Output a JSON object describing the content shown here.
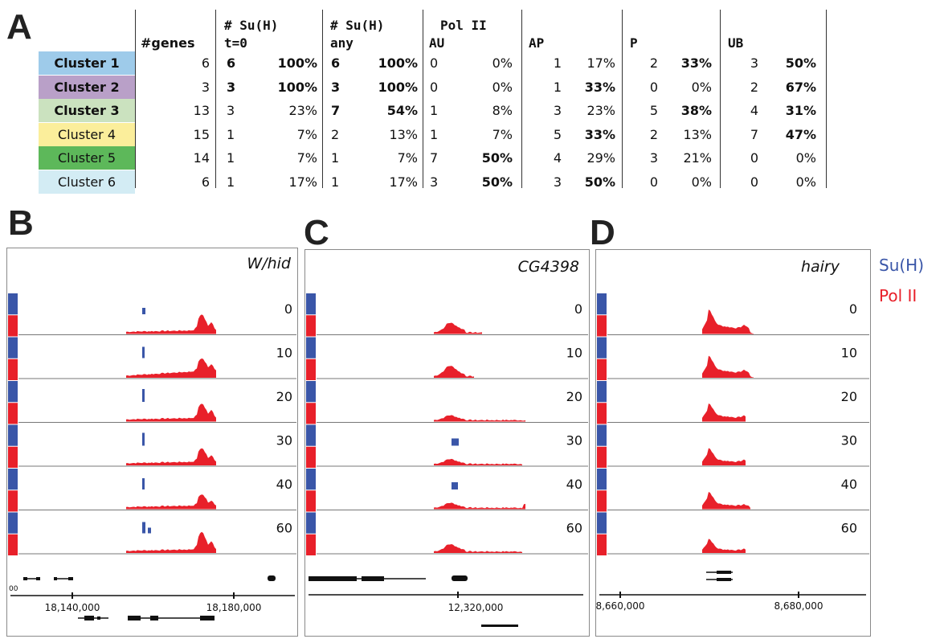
{
  "panels": {
    "A": "A",
    "B": "B",
    "C": "C",
    "D": "D"
  },
  "table": {
    "headers": {
      "genes": "#genes",
      "suh_t0_line1": "# Su(H)",
      "suh_t0_line2": "t=0",
      "suh_any_line1": "# Su(H)",
      "suh_any_line2": "any",
      "polii": "Pol II",
      "au": "AU",
      "ap": "AP",
      "p": "P",
      "ub": "UB"
    },
    "rows": [
      {
        "cluster": "Cluster 1",
        "color": "#9ecbea",
        "bold_name": true,
        "genes": "6",
        "t0_n": "6",
        "t0_p": "100%",
        "t0_b": true,
        "any_n": "6",
        "any_p": "100%",
        "any_b": true,
        "au_n": "0",
        "au_p": "0%",
        "au_b": false,
        "ap_n": "1",
        "ap_p": "17%",
        "ap_b": false,
        "p_n": "2",
        "p_p": "33%",
        "p_b": true,
        "ub_n": "3",
        "ub_p": "50%",
        "ub_b": true
      },
      {
        "cluster": "Cluster 2",
        "color": "#b9a0c8",
        "bold_name": true,
        "genes": "3",
        "t0_n": "3",
        "t0_p": "100%",
        "t0_b": true,
        "any_n": "3",
        "any_p": "100%",
        "any_b": true,
        "au_n": "0",
        "au_p": "0%",
        "au_b": false,
        "ap_n": "1",
        "ap_p": "33%",
        "ap_b": true,
        "p_n": "0",
        "p_p": "0%",
        "p_b": false,
        "ub_n": "2",
        "ub_p": "67%",
        "ub_b": true
      },
      {
        "cluster": "Cluster 3",
        "color": "#cbe2bf",
        "bold_name": true,
        "genes": "13",
        "t0_n": "3",
        "t0_p": "23%",
        "t0_b": false,
        "any_n": "7",
        "any_p": "54%",
        "any_b": true,
        "au_n": "1",
        "au_p": "8%",
        "au_b": false,
        "ap_n": "3",
        "ap_p": "23%",
        "ap_b": false,
        "p_n": "5",
        "p_p": "38%",
        "p_b": true,
        "ub_n": "4",
        "ub_p": "31%",
        "ub_b": true
      },
      {
        "cluster": "Cluster 4",
        "color": "#fbee9b",
        "bold_name": false,
        "genes": "15",
        "t0_n": "1",
        "t0_p": "7%",
        "t0_b": false,
        "any_n": "2",
        "any_p": "13%",
        "any_b": false,
        "au_n": "1",
        "au_p": "7%",
        "au_b": false,
        "ap_n": "5",
        "ap_p": "33%",
        "ap_b": true,
        "p_n": "2",
        "p_p": "13%",
        "p_b": false,
        "ub_n": "7",
        "ub_p": "47%",
        "ub_b": true
      },
      {
        "cluster": "Cluster 5",
        "color": "#5db85a",
        "bold_name": false,
        "genes": "14",
        "t0_n": "1",
        "t0_p": "7%",
        "t0_b": false,
        "any_n": "1",
        "any_p": "7%",
        "any_b": false,
        "au_n": "7",
        "au_p": "50%",
        "au_b": true,
        "ap_n": "4",
        "ap_p": "29%",
        "ap_b": false,
        "p_n": "3",
        "p_p": "21%",
        "p_b": false,
        "ub_n": "0",
        "ub_p": "0%",
        "ub_b": false
      },
      {
        "cluster": "Cluster 6",
        "color": "#d3ecf4",
        "bold_name": false,
        "genes": "6",
        "t0_n": "1",
        "t0_p": "17%",
        "t0_b": false,
        "any_n": "1",
        "any_p": "17%",
        "any_b": false,
        "au_n": "3",
        "au_p": "50%",
        "au_b": true,
        "ap_n": "3",
        "ap_p": "50%",
        "ap_b": true,
        "p_n": "0",
        "p_p": "0%",
        "p_b": false,
        "ub_n": "0",
        "ub_p": "0%",
        "ub_b": false
      }
    ]
  },
  "legend": {
    "suh": "Su(H)",
    "suh_color": "#3a56a8",
    "polii": "Pol II",
    "polii_color": "#e8202a"
  },
  "browsers": [
    {
      "id": "B",
      "gene": "W/hid",
      "timepoints": [
        "0",
        "10",
        "20",
        "30",
        "40",
        "60"
      ],
      "coords": [
        "18,140,000",
        "18,180,000"
      ],
      "edge_label": "00"
    },
    {
      "id": "C",
      "gene": "CG4398",
      "timepoints": [
        "0",
        "10",
        "20",
        "30",
        "40",
        "60"
      ],
      "coords": [
        "12,320,000"
      ]
    },
    {
      "id": "D",
      "gene": "hairy",
      "timepoints": [
        "0",
        "10",
        "20",
        "30",
        "40",
        "60"
      ],
      "coords": [
        "8,660,000",
        "8,680,000"
      ]
    }
  ]
}
